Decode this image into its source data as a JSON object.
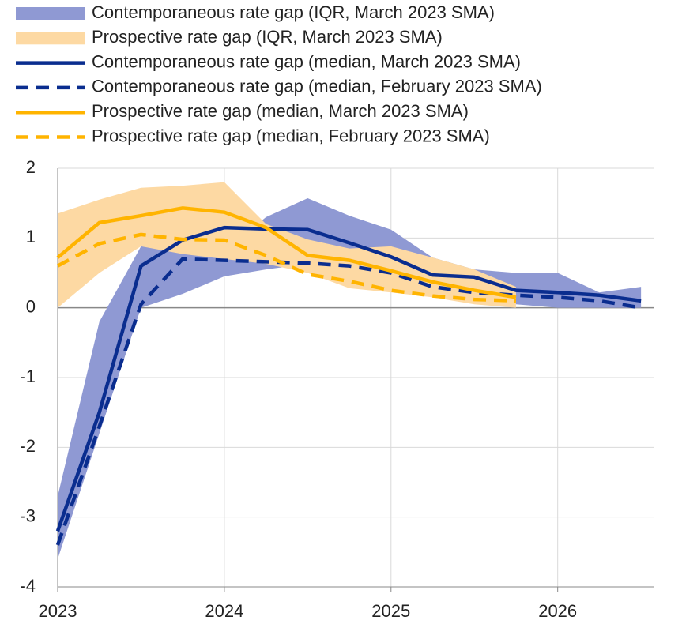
{
  "chart_data": {
    "type": "line",
    "x": [
      2023,
      2023.25,
      2023.5,
      2023.75,
      2024,
      2024.25,
      2024.5,
      2024.75,
      2025,
      2025.25,
      2025.5,
      2025.75,
      2026,
      2026.25,
      2026.5
    ],
    "xlim": [
      2023,
      2026.58
    ],
    "xticks": [
      2023,
      2024,
      2025,
      2026
    ],
    "ylim": [
      -4,
      2
    ],
    "yticks": [
      -4,
      -3,
      -2,
      -1,
      0,
      1,
      2
    ],
    "grid": true,
    "series": [
      {
        "name": "Contemporaneous rate gap (IQR, March 2023 SMA)",
        "kind": "band",
        "color": "#8f99d3",
        "low": [
          -3.6,
          -1.8,
          0.0,
          0.2,
          0.45,
          0.55,
          0.63,
          0.6,
          0.55,
          0.3,
          0.15,
          0.05,
          0.0,
          0.0,
          0.0
        ],
        "high": [
          -2.7,
          -0.2,
          0.88,
          0.9,
          0.82,
          1.3,
          1.57,
          1.32,
          1.12,
          0.72,
          0.55,
          0.5,
          0.5,
          0.22,
          0.3
        ]
      },
      {
        "name": "Prospective rate gap (IQR, March  2023 SMA)",
        "kind": "band",
        "color": "#fdd9a3",
        "low": [
          0.0,
          0.5,
          0.88,
          0.77,
          0.7,
          0.63,
          0.5,
          0.28,
          0.22,
          0.15,
          0.05,
          0.0,
          null,
          null,
          null
        ],
        "high": [
          1.35,
          1.55,
          1.72,
          1.75,
          1.8,
          1.2,
          0.98,
          0.85,
          0.88,
          0.72,
          0.55,
          0.3,
          null,
          null,
          null
        ]
      },
      {
        "name": "Contemporaneous rate gap (median, March 2023 SMA)",
        "kind": "line",
        "dash": false,
        "color": "#0a2d8f",
        "values": [
          -3.2,
          -1.5,
          0.6,
          0.97,
          1.15,
          1.13,
          1.12,
          0.93,
          0.73,
          0.47,
          0.44,
          0.25,
          0.22,
          0.18,
          0.1
        ]
      },
      {
        "name": "Contemporaneous rate gap (median, February 2023 SMA)",
        "kind": "line",
        "dash": true,
        "color": "#0a2d8f",
        "values": [
          -3.4,
          -1.7,
          0.05,
          0.7,
          0.68,
          0.66,
          0.64,
          0.6,
          0.5,
          0.3,
          0.22,
          0.18,
          0.15,
          0.1,
          0.0
        ]
      },
      {
        "name": "Prospective rate gap (median, March 2023 SMA)",
        "kind": "line",
        "dash": false,
        "color": "#ffb400",
        "values": [
          0.72,
          1.22,
          1.32,
          1.43,
          1.37,
          1.15,
          0.75,
          0.68,
          0.53,
          0.37,
          0.25,
          0.15,
          null,
          null,
          null
        ]
      },
      {
        "name": "Prospective rate gap (median, February  2023 SMA)",
        "kind": "line",
        "dash": true,
        "color": "#ffb400",
        "values": [
          0.6,
          0.92,
          1.05,
          0.98,
          0.97,
          0.75,
          0.48,
          0.38,
          0.25,
          0.17,
          0.12,
          0.1,
          null,
          null,
          null
        ]
      }
    ]
  }
}
